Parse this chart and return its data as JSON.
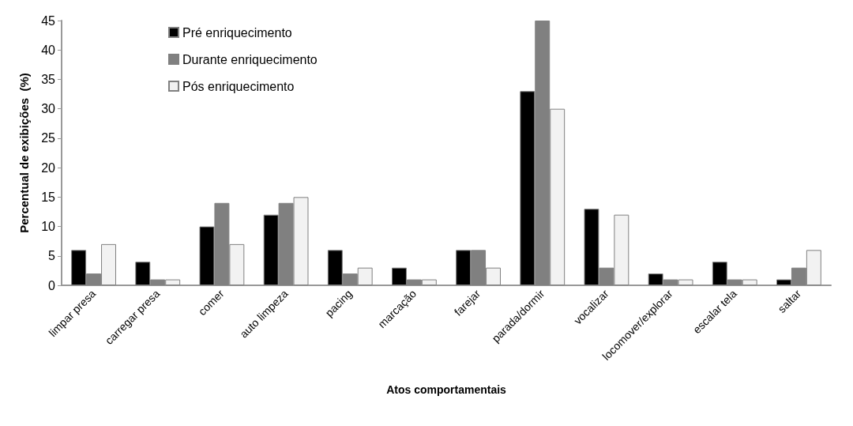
{
  "chart_data": {
    "type": "bar",
    "xlabel": "Atos comportamentais",
    "ylabel": "Percentual de exibições  (%)",
    "categories": [
      "limpar presa",
      "carregar presa",
      "comer",
      "auto limpeza",
      "pacing",
      "marcação",
      "farejar",
      "parada/dormir",
      "vocalizar",
      "locomover/explorar",
      "escalar tela",
      "saltar"
    ],
    "series": [
      {
        "name": "Pré enriquecimento",
        "color": "#000000",
        "values": [
          6,
          4,
          10,
          12,
          6,
          3,
          6,
          33,
          13,
          2,
          4,
          1
        ]
      },
      {
        "name": "Durante enriquecimento",
        "color": "#808080",
        "values": [
          2,
          1,
          14,
          14,
          2,
          1,
          6,
          45,
          3,
          1,
          1,
          3
        ]
      },
      {
        "name": "Pós enriquecimento",
        "color": "#f2f2f2",
        "values": [
          7,
          1,
          7,
          15,
          3,
          1,
          3,
          30,
          12,
          1,
          1,
          6
        ]
      }
    ],
    "ylim": [
      0,
      45
    ],
    "yticks": [
      0,
      5,
      10,
      15,
      20,
      25,
      30,
      35,
      40,
      45
    ],
    "grid": false,
    "legend": "top left"
  }
}
